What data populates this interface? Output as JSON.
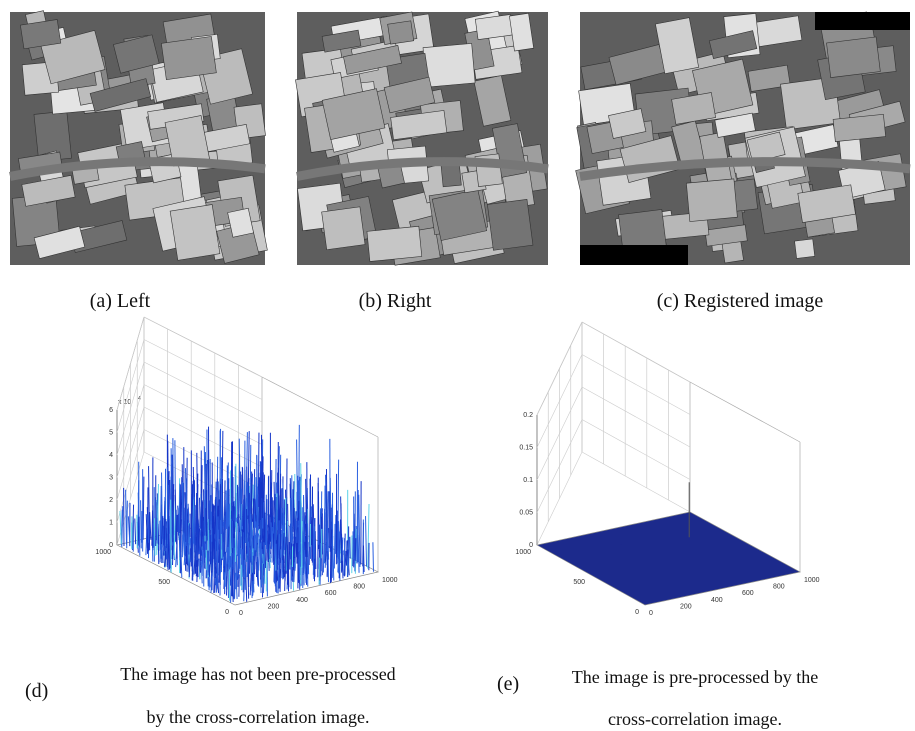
{
  "images": [
    {
      "caption": "(a) Left"
    },
    {
      "caption": "(b) Right"
    },
    {
      "caption": "(c) Registered image"
    }
  ],
  "plots": [
    {
      "label": "(d)",
      "lines": [
        "The image has not been pre-processed",
        "by the cross-correlation image."
      ],
      "exponent_base": "x 10",
      "exponent_power": "4",
      "z_ticks": [
        "0",
        "1",
        "2",
        "3",
        "4",
        "5",
        "6"
      ],
      "y_ticks": [
        "1000",
        "500",
        "0"
      ],
      "x_ticks": [
        "0",
        "200",
        "400",
        "600",
        "800",
        "1000"
      ]
    },
    {
      "label": "(e)",
      "lines": [
        "The image is pre-processed by the",
        "cross-correlation image."
      ],
      "z_ticks": [
        "0",
        "0.05",
        "0.1",
        "0.15",
        "0.2"
      ],
      "y_ticks": [
        "1000",
        "500",
        "0"
      ],
      "x_ticks": [
        "0",
        "200",
        "400",
        "600",
        "800",
        "1000"
      ]
    }
  ]
}
